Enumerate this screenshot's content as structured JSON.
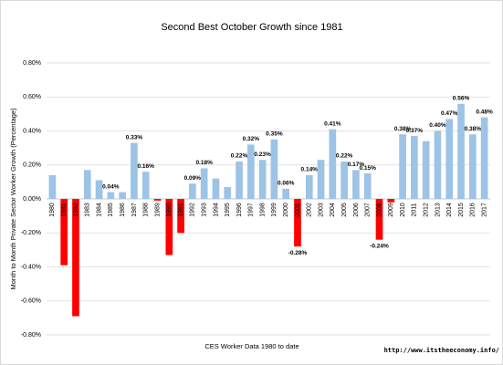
{
  "chart_data": {
    "type": "bar",
    "title": "Second Best October Growth since 1981",
    "x_label": "CES Worker Data 1980 to date",
    "y_label": "Month to Month Private Sector Worker Growth (Percentage)",
    "source": "http://www.itstheeconomy.info/",
    "categories": [
      "1980",
      "1981",
      "1982",
      "1983",
      "1984",
      "1985",
      "1986",
      "1987",
      "1988",
      "1989",
      "1990",
      "1991",
      "1992",
      "1993",
      "1994",
      "1995",
      "1996",
      "1997",
      "1998",
      "1999",
      "2000",
      "2001",
      "2002",
      "2003",
      "2004",
      "2005",
      "2006",
      "2007",
      "2008",
      "2009",
      "2010",
      "2011",
      "2012",
      "2013",
      "2014",
      "2015",
      "2016",
      "2017"
    ],
    "values": [
      0.14,
      -0.39,
      -0.69,
      0.17,
      0.11,
      0.04,
      0.04,
      0.33,
      0.16,
      -0.01,
      -0.33,
      -0.2,
      0.09,
      0.18,
      0.12,
      0.07,
      0.22,
      0.32,
      0.23,
      0.35,
      0.06,
      -0.28,
      0.14,
      0.23,
      0.41,
      0.22,
      0.17,
      0.15,
      -0.24,
      -0.02,
      0.38,
      0.37,
      0.34,
      0.4,
      0.47,
      0.56,
      0.38,
      0.48
    ],
    "value_labels": [
      null,
      null,
      null,
      null,
      null,
      "0.04%",
      null,
      "0.33%",
      "0.16%",
      null,
      null,
      null,
      "0.09%",
      "0.18%",
      null,
      null,
      "0.22%",
      "0.32%",
      "0.23%",
      "0.35%",
      "0.06%",
      "-0.28%",
      "0.14%",
      null,
      "0.41%",
      "0.22%",
      "0.17%",
      "0.15%",
      "-0.24%",
      null,
      "0.38%",
      "0.37%",
      null,
      "0.40%",
      "0.47%",
      "0.56%",
      "0.38%",
      "0.48%"
    ],
    "color": "#9dc3e6",
    "negative_color": "#ff0000",
    "ylim": [
      -0.8,
      0.8
    ],
    "yticks": [
      {
        "value": -0.8,
        "label": "-0.80%"
      },
      {
        "value": -0.6,
        "label": "-0.60%"
      },
      {
        "value": -0.4,
        "label": "-0.40%"
      },
      {
        "value": -0.2,
        "label": "-0.20%"
      },
      {
        "value": 0,
        "label": "0.00%"
      },
      {
        "value": 0.2,
        "label": "0.20%"
      },
      {
        "value": 0.4,
        "label": "0.40%"
      },
      {
        "value": 0.6,
        "label": "0.60%"
      },
      {
        "value": 0.8,
        "label": "0.80%"
      }
    ],
    "grid": true
  }
}
